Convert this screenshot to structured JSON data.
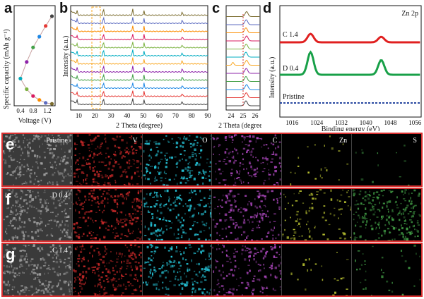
{
  "panel_labels": {
    "a": "a",
    "b": "b",
    "c": "c",
    "d": "d",
    "e": "e",
    "f": "f",
    "g": "g"
  },
  "panel_a": {
    "ylabel": "Specific capacity (mAh g⁻¹)",
    "xlabel": "Voltage (V)",
    "xticks": [
      "0.4",
      "0.8",
      "1.2"
    ]
  },
  "panel_b": {
    "ylabel": "Intensity (a.u.)",
    "xlabel": "2 Theta (degree)",
    "xticks": [
      "10",
      "20",
      "30",
      "40",
      "50",
      "60",
      "70",
      "80",
      "90"
    ]
  },
  "panel_c": {
    "xlabel": "2 Theta (degree)",
    "xticks": [
      "24",
      "25",
      "26"
    ]
  },
  "panel_d": {
    "tag": "Zn 2p",
    "ylabel": "Intensity (a.u.)",
    "xlabel": "Binding energy (eV)",
    "xticks": [
      "1016",
      "1024",
      "1032",
      "1040",
      "1048",
      "1056"
    ],
    "series_labels": {
      "c14": "C 1.4",
      "d04": "D 0.4",
      "pristine": "Pristine"
    }
  },
  "mapping": {
    "row_labels": [
      "e",
      "f",
      "g"
    ],
    "row_tags": [
      "Pristine",
      "D 0.4",
      "C 1.4"
    ],
    "columns": [
      "V",
      "O",
      "C",
      "Zn",
      "S"
    ]
  },
  "colors": {
    "curve_colors": [
      "#444444",
      "#e53935",
      "#1e88e5",
      "#43a047",
      "#8e24aa",
      "#f9a825",
      "#00acc1",
      "#7cb342",
      "#d81b60",
      "#fb8c00",
      "#5c6bc0",
      "#7b6c2e"
    ],
    "xps_red": "#e02020",
    "xps_green": "#18a048",
    "xps_blue": "#2848a0",
    "frame_red": "#d93030"
  },
  "chart_data": [
    {
      "type": "scatter",
      "title": "",
      "xlabel": "Voltage (V)",
      "ylabel": "Specific capacity (mAh g⁻¹)",
      "xlim": [
        0.2,
        1.5
      ],
      "series": [
        {
          "x": [
            1.4,
            1.2,
            1.0,
            0.8,
            0.6,
            0.4
          ],
          "y": [
            0.92,
            0.82,
            0.71,
            0.6,
            0.45,
            0.28
          ]
        },
        {
          "x": [
            0.4,
            0.6,
            0.8,
            1.0,
            1.2,
            1.4
          ],
          "y": [
            0.28,
            0.17,
            0.1,
            0.06,
            0.03,
            0.02
          ]
        }
      ]
    },
    {
      "type": "line",
      "xlabel": "2 Theta (degree)",
      "ylabel": "Intensity (a.u.)",
      "xlim": [
        5,
        90
      ],
      "series_count": 12
    },
    {
      "type": "line",
      "xlabel": "2 Theta (degree)",
      "xlim": [
        23.5,
        26.5
      ],
      "series_count": 12
    },
    {
      "type": "line",
      "xlabel": "Binding energy (eV)",
      "ylabel": "Intensity (a.u.)",
      "xlim": [
        1012,
        1058
      ],
      "series": [
        {
          "name": "C 1.4",
          "peaks": [
            1022,
            1045
          ]
        },
        {
          "name": "D 0.4",
          "peaks": [
            1022,
            1045
          ]
        },
        {
          "name": "Pristine",
          "peaks": []
        }
      ]
    }
  ]
}
